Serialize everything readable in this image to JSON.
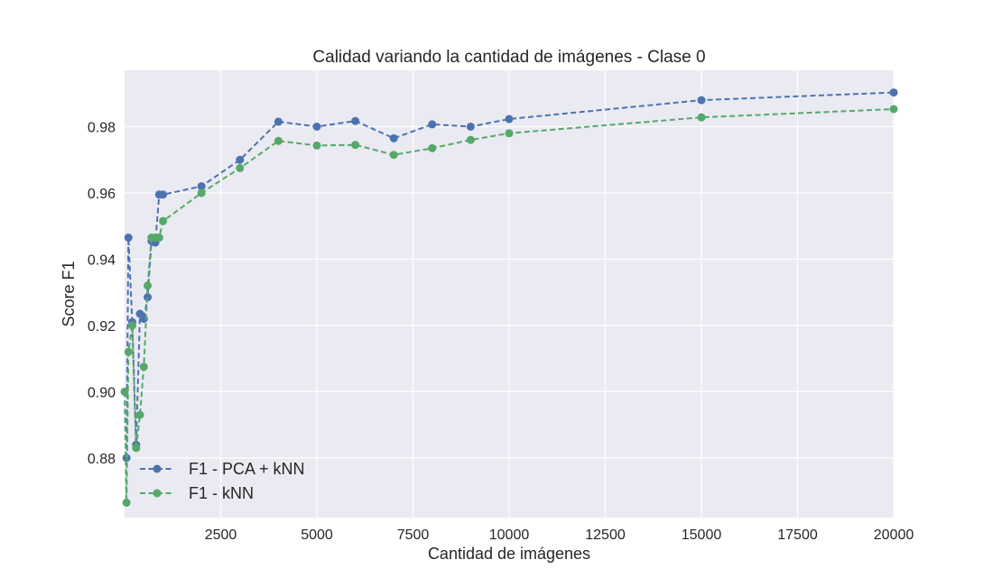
{
  "chart_data": {
    "type": "line",
    "title": "Calidad variando la cantidad de imágenes - Clase 0",
    "xlabel": "Cantidad de imágenes",
    "ylabel": "Score F1",
    "xlim": [
      0,
      20000
    ],
    "ylim": [
      0.862,
      0.997
    ],
    "x_ticks": [
      2500,
      5000,
      7500,
      10000,
      12500,
      15000,
      17500,
      20000
    ],
    "x_tick_labels": [
      "2500",
      "5000",
      "7500",
      "10000",
      "12500",
      "15000",
      "17500",
      "20000"
    ],
    "y_ticks": [
      0.88,
      0.9,
      0.92,
      0.94,
      0.96,
      0.98
    ],
    "y_tick_labels": [
      "0.88",
      "0.90",
      "0.92",
      "0.94",
      "0.96",
      "0.98"
    ],
    "grid": true,
    "legend_position": "lower-left",
    "background": "#eaeaf2",
    "series": [
      {
        "name": "F1 - PCA + kNN",
        "color": "#4c72b0",
        "x": [
          50,
          100,
          200,
          300,
          400,
          500,
          600,
          700,
          800,
          900,
          1000,
          2000,
          3000,
          4000,
          5000,
          6000,
          7000,
          8000,
          9000,
          10000,
          15000,
          20000
        ],
        "values": [
          0.88,
          0.9465,
          0.921,
          0.884,
          0.9235,
          0.922,
          0.9285,
          0.9455,
          0.945,
          0.9595,
          0.9595,
          0.962,
          0.97,
          0.9815,
          0.98,
          0.9817,
          0.9765,
          0.9807,
          0.98,
          0.9823,
          0.988,
          0.9903
        ]
      },
      {
        "name": "F1 - kNN",
        "color": "#55a868",
        "x": [
          0,
          50,
          100,
          200,
          300,
          400,
          500,
          600,
          700,
          800,
          900,
          1000,
          2000,
          3000,
          4000,
          5000,
          6000,
          7000,
          8000,
          9000,
          10000,
          15000,
          20000
        ],
        "values": [
          0.9,
          0.8665,
          0.912,
          0.92,
          0.883,
          0.893,
          0.9075,
          0.932,
          0.9465,
          0.9465,
          0.9465,
          0.9515,
          0.96,
          0.9675,
          0.9757,
          0.9743,
          0.9745,
          0.9715,
          0.9735,
          0.976,
          0.978,
          0.9828,
          0.9853
        ]
      }
    ]
  }
}
